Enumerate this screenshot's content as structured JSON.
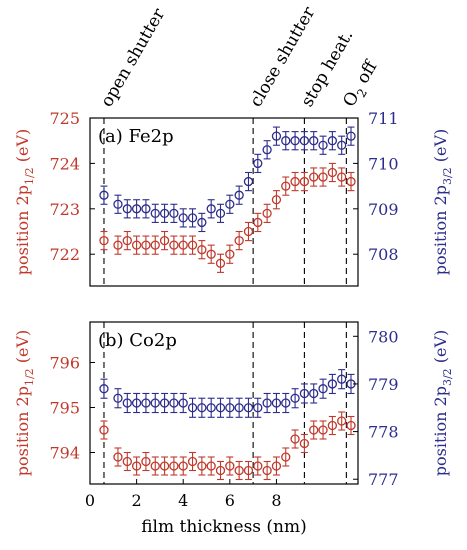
{
  "colors": {
    "left": "#c0392b",
    "right": "#2c2c8c",
    "axis": "#000000"
  },
  "chart_data": [
    {
      "type": "scatter",
      "panel_label": "(a) Fe2p",
      "xlabel": "film thickness (nm)",
      "ylabel_left": "position 2p1/2 (eV)",
      "ylabel_right": "position 2p3/2 (eV)",
      "xlim": [
        0,
        11.5
      ],
      "ylim_left": [
        721.3,
        725.0
      ],
      "ylim_right": [
        707.3,
        711.0
      ],
      "yticks_left": [
        "722",
        "723",
        "724",
        "725"
      ],
      "yticks_right": [
        "708",
        "709",
        "710",
        "711"
      ],
      "x": [
        0.6,
        1.2,
        1.6,
        2.0,
        2.4,
        2.8,
        3.2,
        3.6,
        4.0,
        4.4,
        4.8,
        5.2,
        5.6,
        6.0,
        6.4,
        6.8,
        7.2,
        7.6,
        8.0,
        8.4,
        8.8,
        9.2,
        9.6,
        10.0,
        10.4,
        10.8,
        11.2
      ],
      "series": [
        {
          "axis": "left",
          "values": [
            722.3,
            722.2,
            722.3,
            722.2,
            722.2,
            722.2,
            722.3,
            722.2,
            722.2,
            722.2,
            722.1,
            722.0,
            721.8,
            722.0,
            722.3,
            722.5,
            722.7,
            722.9,
            723.2,
            723.5,
            723.6,
            723.6,
            723.7,
            723.7,
            723.8,
            723.7,
            723.6
          ],
          "err": 0.2
        },
        {
          "axis": "right",
          "values": [
            709.3,
            709.1,
            709.0,
            709.0,
            709.0,
            708.9,
            708.9,
            708.9,
            708.8,
            708.8,
            708.7,
            709.0,
            708.9,
            709.1,
            709.3,
            709.6,
            710.0,
            710.3,
            710.6,
            710.5,
            710.5,
            710.5,
            710.5,
            710.4,
            710.5,
            710.4,
            710.6
          ],
          "err": 0.2
        }
      ],
      "vlines": [
        0.6,
        7.0,
        9.2,
        11.0
      ]
    },
    {
      "type": "scatter",
      "panel_label": "(b) Co2p",
      "xlabel": "film thickness (nm)",
      "ylabel_left": "position 2p1/2 (eV)",
      "ylabel_right": "position 2p3/2 (eV)",
      "xlim": [
        0,
        11.5
      ],
      "xticks": [
        "0",
        "2",
        "4",
        "6",
        "8"
      ],
      "ylim_left": [
        793.3,
        796.9
      ],
      "ylim_right": [
        776.9,
        780.3
      ],
      "yticks_left": [
        "794",
        "795",
        "796"
      ],
      "yticks_right": [
        "777",
        "778",
        "779",
        "780"
      ],
      "x": [
        0.6,
        1.2,
        1.6,
        2.0,
        2.4,
        2.8,
        3.2,
        3.6,
        4.0,
        4.4,
        4.8,
        5.2,
        5.6,
        6.0,
        6.4,
        6.8,
        7.2,
        7.6,
        8.0,
        8.4,
        8.8,
        9.2,
        9.6,
        10.0,
        10.4,
        10.8,
        11.2
      ],
      "series": [
        {
          "axis": "left",
          "values": [
            794.5,
            793.9,
            793.8,
            793.7,
            793.8,
            793.7,
            793.7,
            793.7,
            793.7,
            793.8,
            793.7,
            793.7,
            793.6,
            793.7,
            793.6,
            793.6,
            793.7,
            793.6,
            793.7,
            793.9,
            794.3,
            794.2,
            794.5,
            794.5,
            794.6,
            794.7,
            794.6
          ],
          "err": 0.2
        },
        {
          "axis": "right",
          "values": [
            778.9,
            778.7,
            778.6,
            778.6,
            778.6,
            778.6,
            778.6,
            778.6,
            778.6,
            778.5,
            778.5,
            778.5,
            778.5,
            778.5,
            778.5,
            778.5,
            778.5,
            778.6,
            778.6,
            778.6,
            778.7,
            778.8,
            778.8,
            778.9,
            779.0,
            779.1,
            779.0
          ],
          "err": 0.2
        }
      ],
      "vlines": [
        0.6,
        7.0,
        9.2,
        11.0
      ]
    }
  ],
  "annotations": [
    "open shutter",
    "close shutter",
    "stop heat.",
    "O2 off"
  ],
  "annotation_x": [
    0.6,
    7.0,
    9.2,
    11.0
  ]
}
